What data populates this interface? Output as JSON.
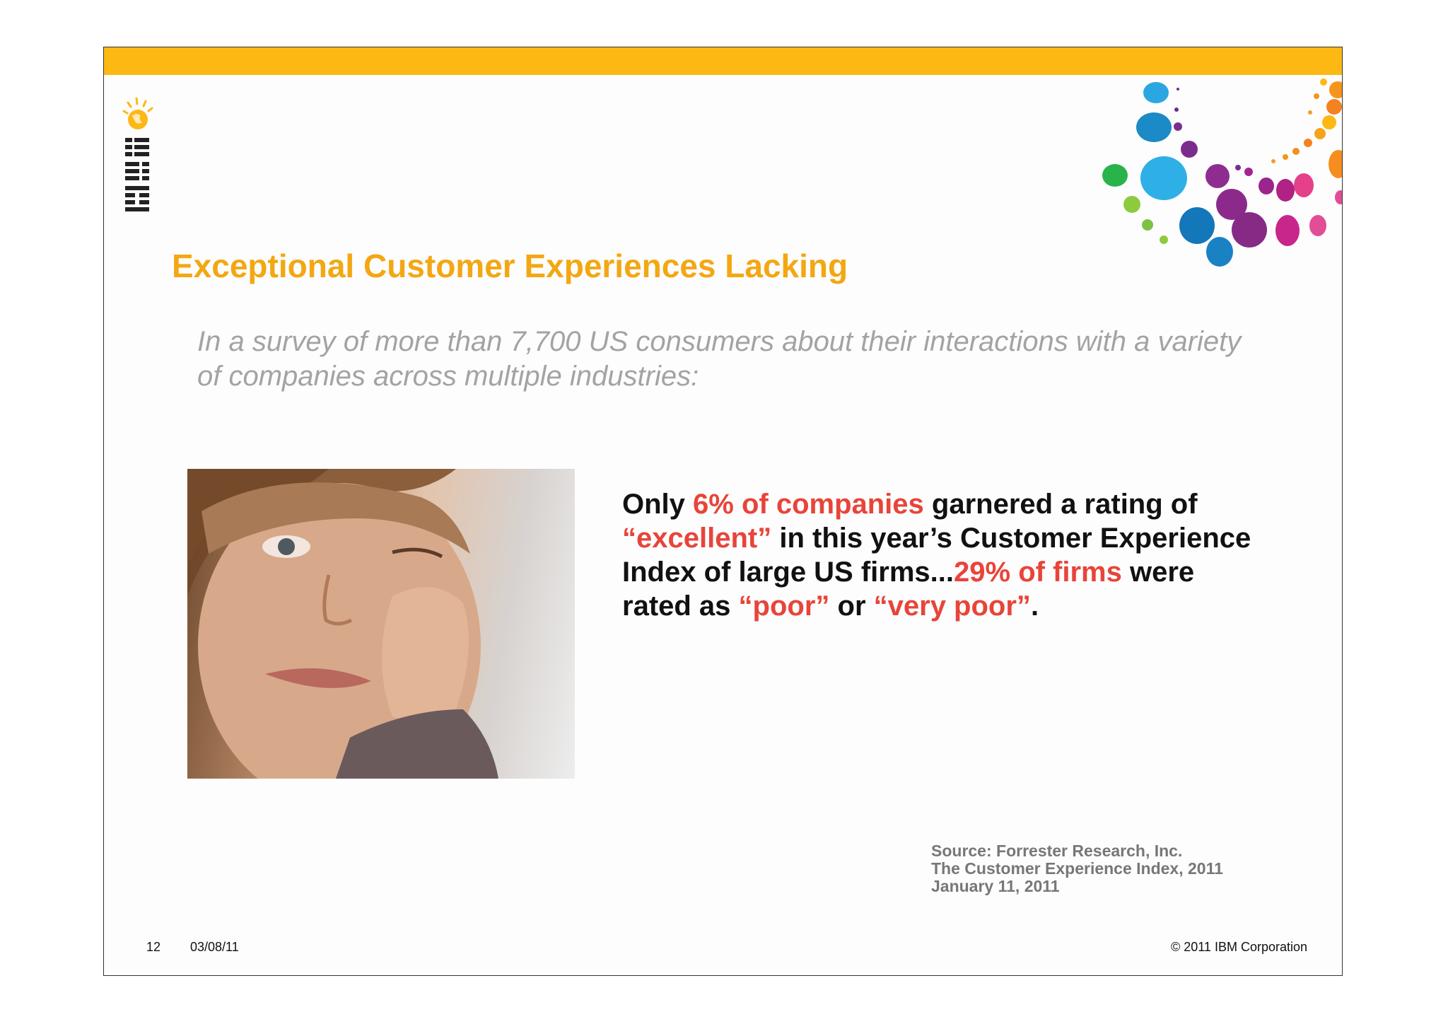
{
  "slide": {
    "title": "Exceptional Customer Experiences Lacking",
    "subtitle": "In a survey of more than 7,700 US consumers about their interactions with a variety of companies across multiple industries:",
    "logo": {
      "icon": "ibm-logo-icon",
      "text": "IBM"
    },
    "photo": {
      "description_icon": "bored-child-photo"
    },
    "quote": {
      "p1": "Only ",
      "h1": "6% of companies",
      "p2": " garnered a rating of ",
      "h2": "“excellent”",
      "p3": " in this year’s Customer Experience Index of large US firms...",
      "h3": "29% of firms",
      "p4": " were rated as ",
      "h4": "“poor”",
      "p5": " or ",
      "h5": "“very poor”",
      "p6": "."
    },
    "source": {
      "line1": "Source:  Forrester Research, Inc.",
      "line2": "The Customer Experience Index, 2011",
      "line3": "January 11, 2011"
    },
    "footer": {
      "page_number": "12",
      "date": "03/08/11",
      "copyright": "© 2011 IBM Corporation"
    },
    "colors": {
      "top_bar": "#fdb813",
      "title": "#f3a712",
      "highlight": "#e8443a",
      "subtitle": "#a3a3a3"
    }
  }
}
